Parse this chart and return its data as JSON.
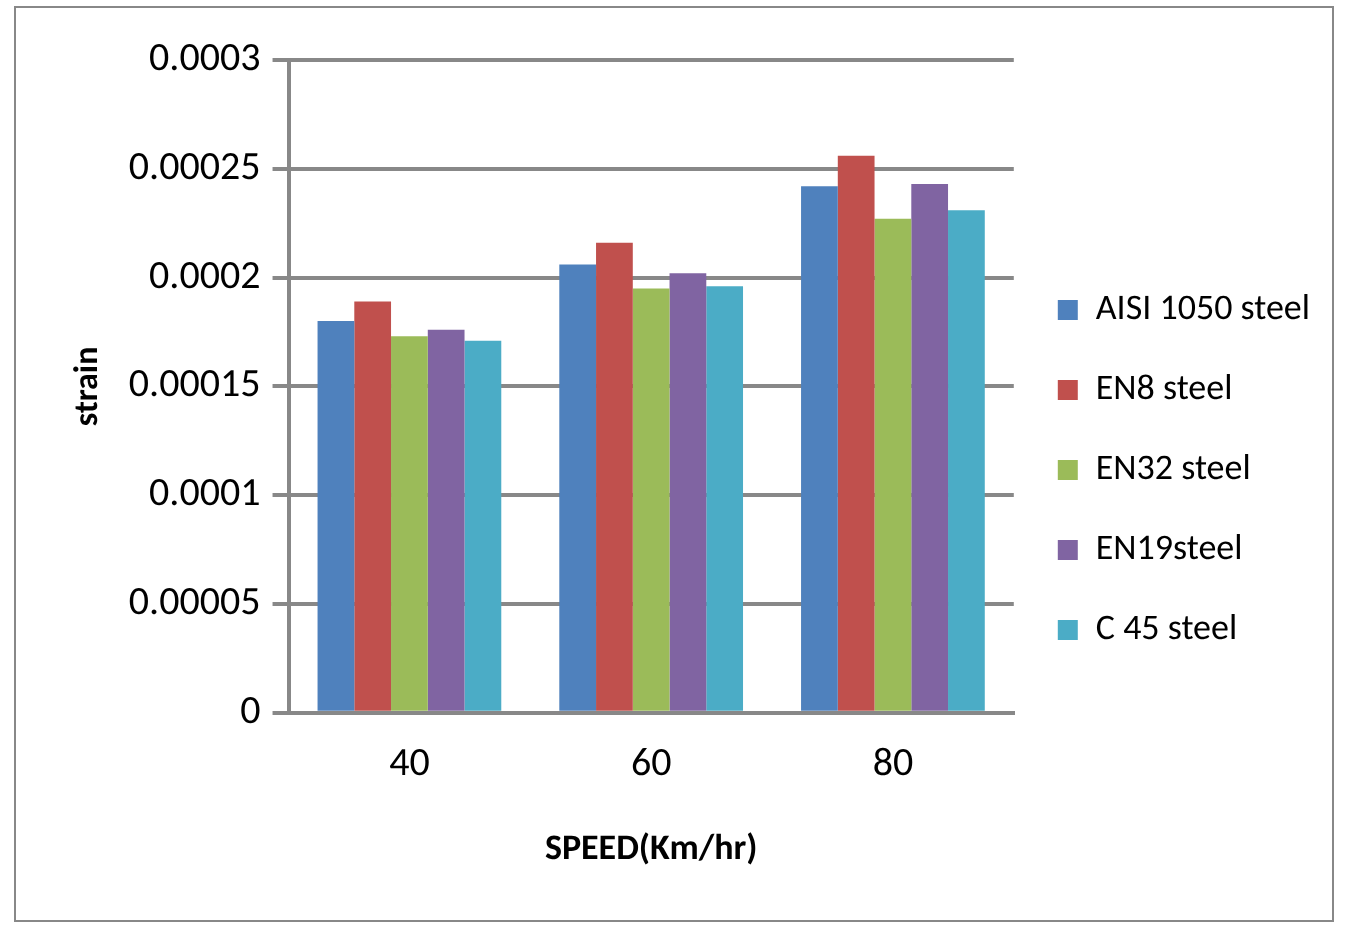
{
  "chart_data": {
    "type": "bar",
    "xlabel": "SPEED(Km/hr)",
    "ylabel": "strain",
    "categories": [
      "40",
      "60",
      "80"
    ],
    "series": [
      {
        "name": "AISI 1050 steel",
        "color": "#4f81bd",
        "values": [
          0.00018,
          0.000206,
          0.000242
        ]
      },
      {
        "name": "EN8 steel",
        "color": "#c0504d",
        "values": [
          0.000189,
          0.000216,
          0.000256
        ]
      },
      {
        "name": "EN32 steel",
        "color": "#9bbb59",
        "values": [
          0.000173,
          0.000195,
          0.000227
        ]
      },
      {
        "name": "EN19steel",
        "color": "#8064a2",
        "values": [
          0.000176,
          0.000202,
          0.000243
        ]
      },
      {
        "name": "C 45 steel",
        "color": "#4bacc6",
        "values": [
          0.000171,
          0.000196,
          0.000231
        ]
      }
    ],
    "ylim": [
      0,
      0.0003
    ],
    "yticks": [
      0,
      {
        "value": 5e-05,
        "label": "0.00005"
      },
      0.0001,
      0.00015,
      0.0002,
      0.00025,
      0.0003
    ],
    "grid": "y",
    "legend": "right"
  }
}
